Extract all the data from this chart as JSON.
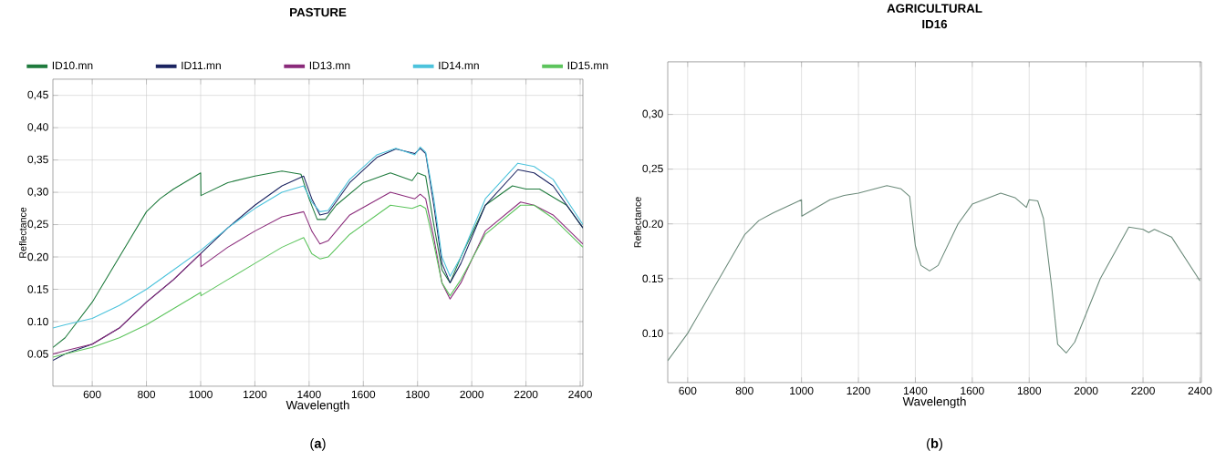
{
  "chart_data": [
    {
      "type": "line",
      "title": "PASTURE",
      "xlabel": "Wavelength",
      "ylabel": "Reflectance",
      "xlim": [
        455,
        2410
      ],
      "ylim": [
        0,
        0.475
      ],
      "xticks": [
        600,
        800,
        1000,
        1200,
        1400,
        1600,
        1800,
        2000,
        2200,
        2400
      ],
      "yticks": [
        {
          "value": 0.05,
          "label": "0.05"
        },
        {
          "value": 0.1,
          "label": "0.10"
        },
        {
          "value": 0.15,
          "label": "0.15"
        },
        {
          "value": 0.2,
          "label": "0.20"
        },
        {
          "value": 0.25,
          "label": "0,25"
        },
        {
          "value": 0.3,
          "label": "0,30"
        },
        {
          "value": 0.35,
          "label": "0,35"
        },
        {
          "value": 0.4,
          "label": "0,40"
        },
        {
          "value": 0.45,
          "label": "0,45"
        }
      ],
      "grid": true,
      "legend": "top",
      "annotations": [
        "(**a**)"
      ],
      "series": [
        {
          "name": "ID10.mn",
          "color": "#1e7a3c",
          "x": [
            455,
            500,
            600,
            700,
            800,
            850,
            900,
            1000,
            1001,
            1100,
            1200,
            1300,
            1370,
            1400,
            1430,
            1460,
            1500,
            1600,
            1700,
            1780,
            1800,
            1830,
            1860,
            1890,
            1920,
            1960,
            2050,
            2150,
            2200,
            2250,
            2350,
            2410
          ],
          "values": [
            0.06,
            0.075,
            0.13,
            0.2,
            0.27,
            0.29,
            0.305,
            0.33,
            0.295,
            0.315,
            0.325,
            0.333,
            0.328,
            0.29,
            0.258,
            0.258,
            0.28,
            0.315,
            0.33,
            0.318,
            0.33,
            0.325,
            0.25,
            0.18,
            0.16,
            0.2,
            0.28,
            0.31,
            0.305,
            0.305,
            0.28,
            0.245
          ]
        },
        {
          "name": "ID11.mn",
          "color": "#1a2360",
          "x": [
            455,
            500,
            600,
            700,
            800,
            900,
            1000,
            1100,
            1200,
            1300,
            1380,
            1410,
            1440,
            1470,
            1550,
            1650,
            1720,
            1790,
            1810,
            1830,
            1860,
            1890,
            1920,
            1960,
            2050,
            2170,
            2230,
            2300,
            2410
          ],
          "values": [
            0.04,
            0.05,
            0.065,
            0.09,
            0.13,
            0.165,
            0.205,
            0.245,
            0.28,
            0.31,
            0.325,
            0.29,
            0.265,
            0.268,
            0.315,
            0.354,
            0.367,
            0.36,
            0.368,
            0.36,
            0.28,
            0.19,
            0.16,
            0.19,
            0.28,
            0.335,
            0.33,
            0.31,
            0.245
          ]
        },
        {
          "name": "ID13.mn",
          "color": "#8a2a7a",
          "x": [
            455,
            500,
            600,
            700,
            800,
            900,
            1000,
            1001,
            1100,
            1200,
            1300,
            1380,
            1410,
            1440,
            1470,
            1550,
            1700,
            1790,
            1810,
            1830,
            1860,
            1890,
            1920,
            1960,
            2050,
            2180,
            2230,
            2300,
            2410
          ],
          "values": [
            0.05,
            0.055,
            0.065,
            0.09,
            0.13,
            0.165,
            0.205,
            0.185,
            0.215,
            0.24,
            0.262,
            0.27,
            0.24,
            0.22,
            0.225,
            0.265,
            0.3,
            0.29,
            0.297,
            0.29,
            0.23,
            0.16,
            0.135,
            0.16,
            0.24,
            0.285,
            0.28,
            0.265,
            0.22
          ]
        },
        {
          "name": "ID14.mn",
          "color": "#4cc3dc",
          "x": [
            455,
            500,
            600,
            700,
            800,
            900,
            1000,
            1100,
            1200,
            1300,
            1380,
            1410,
            1440,
            1470,
            1550,
            1650,
            1720,
            1790,
            1810,
            1830,
            1860,
            1890,
            1920,
            1960,
            2050,
            2170,
            2230,
            2300,
            2410
          ],
          "values": [
            0.09,
            0.095,
            0.105,
            0.125,
            0.15,
            0.18,
            0.21,
            0.245,
            0.275,
            0.3,
            0.31,
            0.285,
            0.27,
            0.272,
            0.32,
            0.358,
            0.368,
            0.358,
            0.37,
            0.362,
            0.29,
            0.2,
            0.17,
            0.2,
            0.29,
            0.345,
            0.34,
            0.32,
            0.25
          ]
        },
        {
          "name": "ID15.mn",
          "color": "#5cc45c",
          "x": [
            455,
            500,
            600,
            700,
            800,
            900,
            1000,
            1001,
            1100,
            1200,
            1300,
            1380,
            1410,
            1440,
            1470,
            1550,
            1700,
            1780,
            1810,
            1830,
            1860,
            1890,
            1920,
            1960,
            2050,
            2180,
            2230,
            2300,
            2410
          ],
          "values": [
            0.045,
            0.05,
            0.06,
            0.075,
            0.095,
            0.12,
            0.145,
            0.14,
            0.165,
            0.19,
            0.215,
            0.23,
            0.205,
            0.197,
            0.2,
            0.235,
            0.28,
            0.275,
            0.28,
            0.275,
            0.22,
            0.16,
            0.14,
            0.165,
            0.235,
            0.28,
            0.28,
            0.26,
            0.215
          ]
        }
      ]
    },
    {
      "type": "line",
      "title": "AGRICULTURAL",
      "subtitle": "ID16",
      "xlabel": "Wavelength",
      "ylabel": "Reflectance",
      "xlim": [
        530,
        2405
      ],
      "ylim": [
        0.055,
        0.348
      ],
      "xticks": [
        600,
        800,
        1000,
        1200,
        1400,
        1600,
        1800,
        2000,
        2200,
        2400
      ],
      "yticks": [
        {
          "value": 0.1,
          "label": "0.10"
        },
        {
          "value": 0.15,
          "label": "0.15"
        },
        {
          "value": 0.2,
          "label": "0.20"
        },
        {
          "value": 0.25,
          "label": "0,25"
        },
        {
          "value": 0.3,
          "label": "0,30"
        }
      ],
      "grid": true,
      "annotations": [
        "(**b**)"
      ],
      "series": [
        {
          "color": "#6b8a7a",
          "x": [
            530,
            600,
            700,
            800,
            850,
            900,
            1000,
            1001,
            1100,
            1150,
            1200,
            1300,
            1350,
            1380,
            1400,
            1420,
            1450,
            1480,
            1550,
            1600,
            1700,
            1750,
            1790,
            1800,
            1830,
            1850,
            1880,
            1900,
            1930,
            1960,
            2050,
            2150,
            2200,
            2220,
            2240,
            2300,
            2400
          ],
          "values": [
            0.075,
            0.1,
            0.145,
            0.19,
            0.203,
            0.21,
            0.222,
            0.207,
            0.222,
            0.226,
            0.228,
            0.235,
            0.232,
            0.225,
            0.18,
            0.162,
            0.157,
            0.162,
            0.2,
            0.218,
            0.228,
            0.224,
            0.215,
            0.222,
            0.221,
            0.205,
            0.14,
            0.09,
            0.082,
            0.092,
            0.15,
            0.197,
            0.195,
            0.192,
            0.195,
            0.188,
            0.148
          ]
        }
      ]
    }
  ]
}
